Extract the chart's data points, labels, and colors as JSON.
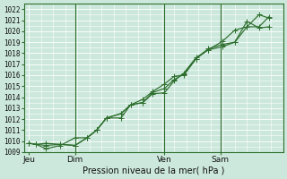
{
  "xlabel": "Pression niveau de la mer( hPa )",
  "ylim": [
    1009,
    1022.5
  ],
  "yticks": [
    1009,
    1010,
    1011,
    1012,
    1013,
    1014,
    1015,
    1016,
    1017,
    1018,
    1019,
    1020,
    1021,
    1022
  ],
  "xtick_labels": [
    "Jeu",
    "Dim",
    "Ven",
    "Sam"
  ],
  "bg_color": "#cce8dc",
  "grid_color": "#b0d8c8",
  "line_color": "#2d6e2d",
  "line1_x": [
    0.0,
    0.3,
    0.7,
    1.3,
    1.9,
    2.4,
    2.8,
    3.2,
    3.8,
    4.2,
    4.7,
    5.1,
    5.6,
    6.0,
    6.4,
    6.9,
    7.4,
    8.0,
    8.5,
    9.0,
    9.5,
    9.9
  ],
  "line1_y": [
    1009.8,
    1009.7,
    1009.8,
    1009.7,
    1009.6,
    1010.3,
    1011.0,
    1012.1,
    1012.5,
    1013.3,
    1013.5,
    1014.4,
    1014.8,
    1015.6,
    1016.1,
    1017.5,
    1018.4,
    1018.8,
    1019.0,
    1020.9,
    1020.3,
    1020.4
  ],
  "line2_x": [
    0.0,
    0.3,
    0.7,
    1.3,
    1.9,
    2.4,
    2.8,
    3.2,
    3.8,
    4.2,
    4.7,
    5.1,
    5.6,
    6.0,
    6.4,
    6.9,
    7.4,
    8.0,
    8.5,
    9.0,
    9.5,
    9.9
  ],
  "line2_y": [
    1009.8,
    1009.7,
    1009.6,
    1009.7,
    1009.6,
    1010.3,
    1011.0,
    1012.1,
    1012.5,
    1013.3,
    1013.5,
    1014.3,
    1014.4,
    1015.5,
    1016.2,
    1017.6,
    1018.3,
    1018.6,
    1019.0,
    1020.4,
    1020.4,
    1021.3
  ],
  "line3_x": [
    0.0,
    0.3,
    0.7,
    1.3,
    1.9,
    2.4,
    2.8,
    3.2,
    3.8,
    4.2,
    4.7,
    5.1,
    5.6,
    6.0,
    6.4,
    6.9,
    7.4,
    8.0,
    8.5,
    9.0,
    9.5,
    9.9
  ],
  "line3_y": [
    1009.8,
    1009.7,
    1009.3,
    1009.6,
    1010.3,
    1010.3,
    1011.0,
    1012.1,
    1012.1,
    1013.3,
    1013.8,
    1014.5,
    1015.2,
    1015.9,
    1016.0,
    1017.5,
    1018.3,
    1019.1,
    1020.1,
    1020.4,
    1021.5,
    1021.2
  ],
  "vlines_x": [
    1.9,
    5.6,
    7.9
  ],
  "xtick_x": [
    0.0,
    1.9,
    5.6,
    7.9
  ],
  "xlim": [
    -0.2,
    10.5
  ],
  "marker": "+",
  "marker_size": 4,
  "lw": 0.85
}
